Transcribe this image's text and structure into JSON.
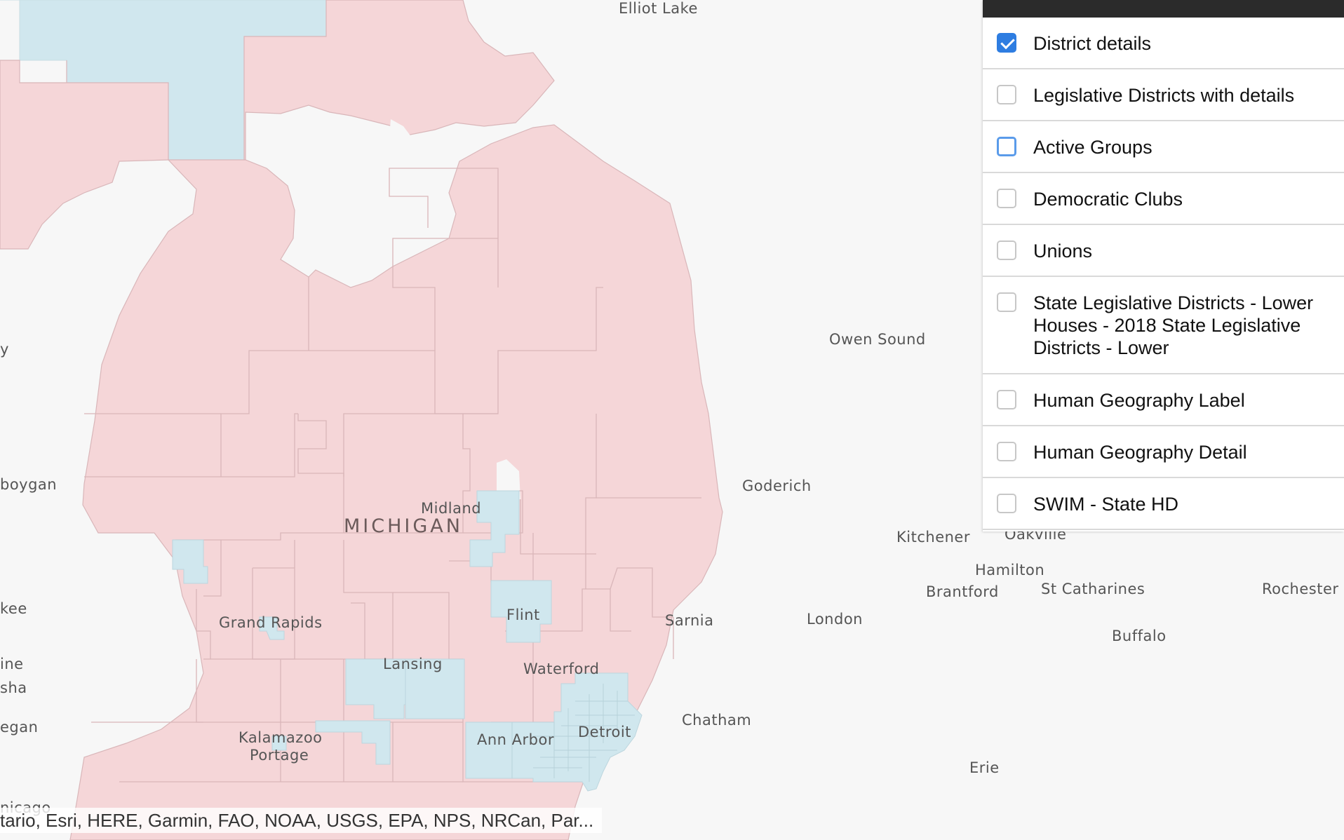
{
  "map": {
    "state_label": "MICHIGAN",
    "places": {
      "elliot_lake": "Elliot Lake",
      "owen_sound": "Owen Sound",
      "goderich": "Goderich",
      "kitchener": "Kitchener",
      "oakville": "Oakville",
      "hamilton": "Hamilton",
      "brantford": "Brantford",
      "st_catharines": "St Catharines",
      "rochester": "Rochester",
      "buffalo": "Buffalo",
      "london": "London",
      "sarnia": "Sarnia",
      "chatham": "Chatham",
      "erie": "Erie",
      "midland": "Midland",
      "flint": "Flint",
      "grand_rapids": "Grand Rapids",
      "lansing": "Lansing",
      "waterford": "Waterford",
      "ann_arbor": "Ann Arbor",
      "detroit": "Detroit",
      "kalamazoo": "Kalamazoo",
      "portage": "Portage",
      "left_y": "y",
      "sheboygan": "boygan",
      "milwaukee": "kee",
      "racine": "ine",
      "kenosha": "sha",
      "waukegan": "egan",
      "chicago": "nicago"
    },
    "colors": {
      "republican": "#f5d6d8",
      "democratic": "#d0e7ee",
      "boundary": "#d9b6b9",
      "background": "#f7f7f7"
    },
    "attribution": "tario, Esri, HERE, Garmin, FAO, NOAA, USGS, EPA, NPS, NRCan, Par..."
  },
  "layers": [
    {
      "label": "District details",
      "checked": true
    },
    {
      "label": "Legislative Districts with details",
      "checked": false
    },
    {
      "label": "Active Groups",
      "checked": false,
      "focused": true
    },
    {
      "label": "Democratic Clubs",
      "checked": false
    },
    {
      "label": "Unions",
      "checked": false
    },
    {
      "label": "State Legislative Districts - Lower Houses - 2018 State Legislative Districts - Lower",
      "checked": false
    },
    {
      "label": "Human Geography Label",
      "checked": false
    },
    {
      "label": "Human Geography Detail",
      "checked": false
    },
    {
      "label": "SWIM - State HD",
      "checked": false
    }
  ]
}
